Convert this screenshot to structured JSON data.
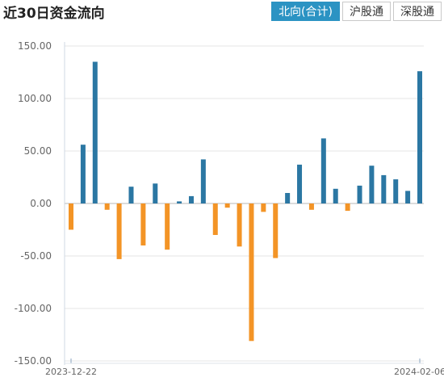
{
  "header": {
    "title": "近30日资金流向",
    "tabs": [
      {
        "label": "北向(合计)",
        "active": true
      },
      {
        "label": "沪股通",
        "active": false
      },
      {
        "label": "深股通",
        "active": false
      }
    ]
  },
  "colors": {
    "positive": "#2b77a3",
    "negative": "#f39426",
    "tab_active": "#2b93c3"
  },
  "chart_data": {
    "type": "bar",
    "x_start_label": "2023-12-22",
    "x_end_label": "2024-02-06",
    "y_ticks": [
      "150.00",
      "100.00",
      "50.00",
      "0.00",
      "-50.00",
      "-100.00",
      "-150.00"
    ],
    "ylim": [
      -150,
      150
    ],
    "grid": true,
    "values": [
      -25,
      56,
      135,
      -6,
      -53,
      16,
      -40,
      19,
      -44,
      2,
      7,
      42,
      -30,
      -4,
      -41,
      -131,
      -8,
      -52,
      10,
      37,
      -6,
      62,
      14,
      -7,
      17,
      36,
      27,
      23,
      12,
      126
    ]
  }
}
